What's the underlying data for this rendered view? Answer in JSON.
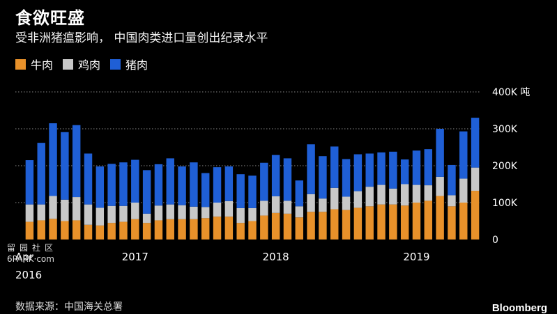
{
  "header": {
    "title": "食欲旺盛",
    "subtitle": "受非洲猪瘟影响， 中国肉类进口量创出纪录水平"
  },
  "legend": [
    {
      "label": "牛肉",
      "color": "#E8912A"
    },
    {
      "label": "鸡肉",
      "color": "#C8C8C8"
    },
    {
      "label": "猪肉",
      "color": "#1F5FD6"
    }
  ],
  "footer": {
    "source": "数据来源：中国海关总署",
    "brand": "Bloomberg"
  },
  "watermark": {
    "line1": "留园社区",
    "line2": "6PARK·com"
  },
  "chart_data": {
    "type": "bar",
    "stacked": true,
    "unit": "吨",
    "ylim": [
      0,
      400000
    ],
    "yticks": [
      0,
      100000,
      200000,
      300000,
      400000
    ],
    "ytick_labels": [
      "0",
      "100K",
      "200K",
      "300K",
      "400K 吨"
    ],
    "grid": true,
    "legend_position": "top-left",
    "xtick_labels": [
      {
        "index": 0,
        "label": "Apr",
        "sub": "2016"
      },
      {
        "index": 9,
        "label": "2017"
      },
      {
        "index": 21,
        "label": "2018"
      },
      {
        "index": 33,
        "label": "2019"
      }
    ],
    "categories": [
      "2016-04",
      "2016-05",
      "2016-06",
      "2016-07",
      "2016-08",
      "2016-09",
      "2016-10",
      "2016-11",
      "2016-12",
      "2017-01",
      "2017-02",
      "2017-03",
      "2017-04",
      "2017-05",
      "2017-06",
      "2017-07",
      "2017-08",
      "2017-09",
      "2017-10",
      "2017-11",
      "2017-12",
      "2018-01",
      "2018-02",
      "2018-03",
      "2018-04",
      "2018-05",
      "2018-06",
      "2018-07",
      "2018-08",
      "2018-09",
      "2018-10",
      "2018-11",
      "2018-12",
      "2019-01",
      "2019-02",
      "2019-03",
      "2019-04",
      "2019-05",
      "2019-06"
    ],
    "series": [
      {
        "name": "牛肉",
        "color": "#E8912A",
        "values": [
          48000,
          52000,
          56000,
          50000,
          52000,
          40000,
          38000,
          45000,
          48000,
          55000,
          45000,
          52000,
          55000,
          55000,
          55000,
          58000,
          62000,
          62000,
          45000,
          50000,
          65000,
          72000,
          70000,
          60000,
          75000,
          75000,
          82000,
          80000,
          86000,
          90000,
          95000,
          95000,
          92000,
          100000,
          105000,
          118000,
          90000,
          100000,
          132000
        ]
      },
      {
        "name": "鸡肉",
        "color": "#C8C8C8",
        "values": [
          47000,
          43000,
          62000,
          58000,
          63000,
          55000,
          48000,
          46000,
          43000,
          45000,
          25000,
          40000,
          40000,
          38000,
          34000,
          30000,
          38000,
          42000,
          40000,
          35000,
          40000,
          45000,
          35000,
          30000,
          48000,
          36000,
          58000,
          36000,
          45000,
          53000,
          53000,
          43000,
          58000,
          48000,
          42000,
          52000,
          30000,
          65000,
          63000
        ]
      },
      {
        "name": "猪肉",
        "color": "#1F5FD6",
        "values": [
          120000,
          167000,
          197000,
          183000,
          195000,
          138000,
          112000,
          114000,
          118000,
          116000,
          118000,
          112000,
          125000,
          105000,
          120000,
          92000,
          96000,
          94000,
          92000,
          88000,
          103000,
          112000,
          115000,
          70000,
          135000,
          115000,
          112000,
          102000,
          100000,
          90000,
          88000,
          100000,
          67000,
          93000,
          98000,
          130000,
          82000,
          128000,
          135000
        ]
      }
    ]
  }
}
